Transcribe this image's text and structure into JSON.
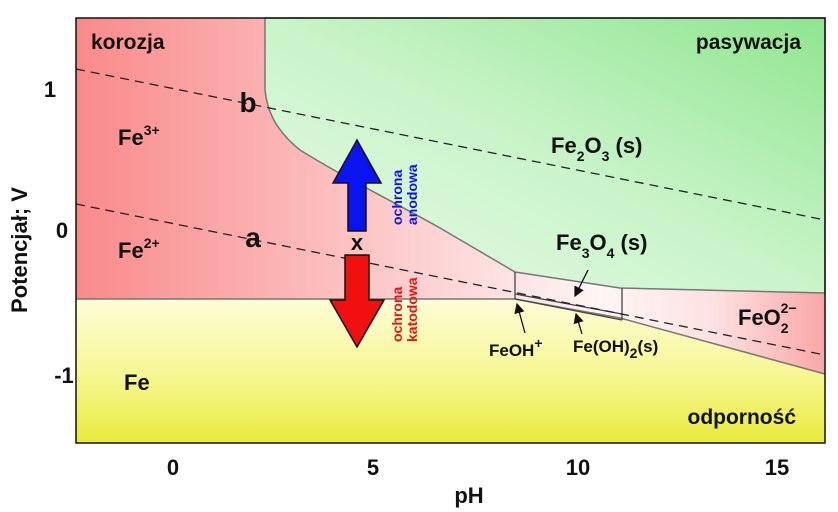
{
  "title": "",
  "axes": {
    "xlabel": "pH",
    "ylabel": "Potencjał; V",
    "x_ticks": [
      "0",
      "5",
      "10",
      "15"
    ],
    "y_ticks": [
      "1",
      "0",
      "-1"
    ]
  },
  "regions": {
    "corrosion": "korozja",
    "passivation": "pasywacja",
    "immunity": "odporność"
  },
  "species": {
    "fe3": {
      "base": "Fe",
      "sup": "3+"
    },
    "fe2": {
      "base": "Fe",
      "sup": "2+"
    },
    "fe": "Fe",
    "fe2o3": {
      "a": "Fe",
      "b": "2",
      "c": "O",
      "d": "3",
      "e": " (s)"
    },
    "fe3o4": {
      "a": "Fe",
      "b": "3",
      "c": "O",
      "d": "4",
      "e": " (s)"
    },
    "feoh": {
      "base": "FeOH",
      "sup": "+"
    },
    "feoh2": {
      "a": "Fe(OH)",
      "b": "2",
      "c": "(s)"
    },
    "feo2": {
      "a": "FeO",
      "b": "2",
      "sup": "2−"
    }
  },
  "lines": {
    "a": "a",
    "b": "b"
  },
  "point": "x",
  "arrows": {
    "anodic": {
      "line1": "ochrona",
      "line2": "anodowa",
      "color": "#0a14f0"
    },
    "cathodic": {
      "line1": "ochrona",
      "line2": "katodowa",
      "color": "#f01010"
    }
  },
  "colors": {
    "corrosion": "#f98d8d",
    "passivation": "#a9eea9",
    "immunity": "#eef03c"
  }
}
